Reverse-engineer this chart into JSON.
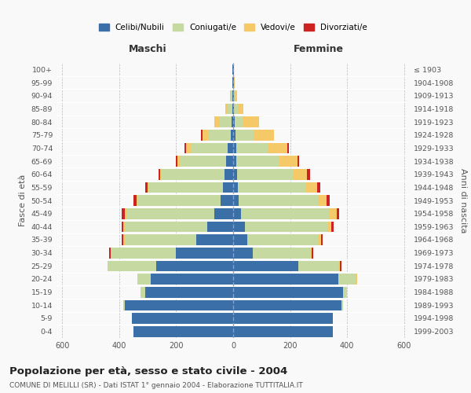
{
  "age_groups": [
    "0-4",
    "5-9",
    "10-14",
    "15-19",
    "20-24",
    "25-29",
    "30-34",
    "35-39",
    "40-44",
    "45-49",
    "50-54",
    "55-59",
    "60-64",
    "65-69",
    "70-74",
    "75-79",
    "80-84",
    "85-89",
    "90-94",
    "95-99",
    "100+"
  ],
  "birth_years": [
    "1999-2003",
    "1994-1998",
    "1989-1993",
    "1984-1988",
    "1979-1983",
    "1974-1978",
    "1969-1973",
    "1964-1968",
    "1959-1963",
    "1954-1958",
    "1949-1953",
    "1944-1948",
    "1939-1943",
    "1934-1938",
    "1929-1933",
    "1924-1928",
    "1919-1923",
    "1914-1918",
    "1909-1913",
    "1904-1908",
    "≤ 1903"
  ],
  "colors": {
    "celibi": "#3a6fa8",
    "coniugati": "#c5d9a0",
    "vedovi": "#f5c968",
    "divorziati": "#cc2222"
  },
  "maschi": {
    "celibi": [
      350,
      355,
      380,
      310,
      290,
      270,
      200,
      130,
      90,
      65,
      45,
      35,
      30,
      25,
      20,
      8,
      6,
      4,
      3,
      2,
      2
    ],
    "coniugati": [
      0,
      0,
      5,
      15,
      45,
      170,
      230,
      250,
      290,
      310,
      290,
      260,
      220,
      160,
      130,
      80,
      40,
      15,
      5,
      2,
      0
    ],
    "vedovi": [
      0,
      0,
      0,
      0,
      2,
      0,
      0,
      5,
      5,
      5,
      5,
      5,
      5,
      10,
      15,
      20,
      20,
      8,
      2,
      0,
      0
    ],
    "divorziati": [
      0,
      0,
      0,
      0,
      0,
      0,
      5,
      5,
      5,
      10,
      10,
      10,
      8,
      5,
      5,
      5,
      0,
      0,
      0,
      0,
      0
    ]
  },
  "femmine": {
    "celibi": [
      350,
      350,
      380,
      385,
      370,
      230,
      70,
      50,
      40,
      28,
      18,
      16,
      14,
      12,
      10,
      8,
      5,
      4,
      3,
      2,
      2
    ],
    "coniugati": [
      0,
      0,
      5,
      15,
      60,
      140,
      200,
      250,
      290,
      310,
      280,
      240,
      195,
      150,
      110,
      65,
      30,
      12,
      5,
      2,
      0
    ],
    "vedovi": [
      0,
      0,
      0,
      0,
      5,
      5,
      5,
      8,
      15,
      25,
      30,
      40,
      50,
      65,
      70,
      70,
      55,
      20,
      5,
      2,
      0
    ],
    "divorziati": [
      0,
      0,
      0,
      0,
      0,
      5,
      5,
      5,
      8,
      10,
      10,
      10,
      10,
      5,
      5,
      0,
      0,
      0,
      0,
      0,
      0
    ]
  },
  "title": "Popolazione per età, sesso e stato civile - 2004",
  "subtitle": "COMUNE DI MELILLI (SR) - Dati ISTAT 1° gennaio 2004 - Elaborazione TUTTITALIA.IT",
  "xlabel_left": "Maschi",
  "xlabel_right": "Femmine",
  "ylabel_left": "Fasce di età",
  "ylabel_right": "Anni di nascita",
  "xlim": 620,
  "background_color": "#f9f9f9",
  "grid_color": "#bbbbbb",
  "legend_labels": [
    "Celibi/Nubili",
    "Coniugati/e",
    "Vedovi/e",
    "Divorziati/e"
  ]
}
